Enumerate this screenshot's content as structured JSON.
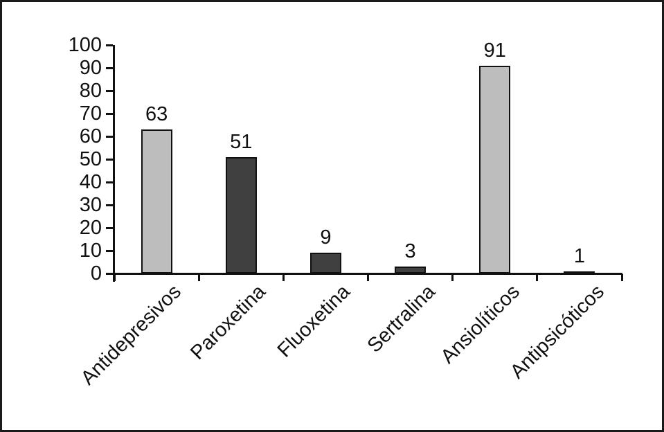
{
  "frame": {
    "background": "#ffffff",
    "border_color": "#1a1a1a"
  },
  "chart_data": {
    "type": "bar",
    "title": "",
    "xlabel": "",
    "ylabel": "",
    "categories": [
      "Antidepresivos",
      "Paroxetina",
      "Fluoxetina",
      "Sertralina",
      "Ansiolíticos",
      "Antipsicóticos"
    ],
    "values": [
      63,
      51,
      9,
      3,
      91,
      1
    ],
    "value_labels": [
      "63",
      "51",
      "9",
      "3",
      "91",
      "1"
    ],
    "bar_colors": [
      "#bdbdbd",
      "#404040",
      "#404040",
      "#404040",
      "#bdbdbd",
      "#bdbdbd"
    ],
    "bar_outline_color": "#111111",
    "axis_color": "#111111",
    "ylim": [
      0,
      100
    ],
    "yticks": [
      0,
      10,
      20,
      30,
      40,
      50,
      60,
      70,
      80,
      90,
      100
    ],
    "grid": false,
    "legend": null,
    "x_tick_rotation_deg": 45,
    "bar_style_note": "light gray for drug classes, dark gray for individual SSRIs"
  }
}
